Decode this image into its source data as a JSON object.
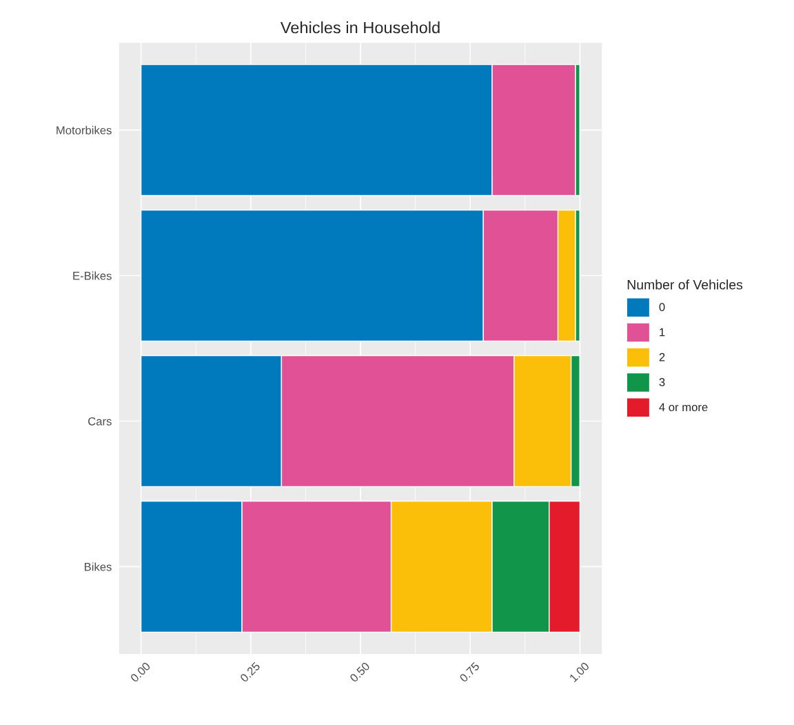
{
  "chart_data": {
    "type": "bar",
    "orientation": "horizontal",
    "stacked": true,
    "title": "Vehicles in Household",
    "legend_title": "Number of Vehicles",
    "legend": "right",
    "categories": [
      "Motorbikes",
      "E-Bikes",
      "Cars",
      "Bikes"
    ],
    "series": [
      {
        "name": "0",
        "color": "#0079bd",
        "values": [
          0.8,
          0.78,
          0.32,
          0.23
        ]
      },
      {
        "name": "1",
        "color": "#e05196",
        "values": [
          0.19,
          0.17,
          0.53,
          0.34
        ]
      },
      {
        "name": "2",
        "color": "#fbbf0a",
        "values": [
          0,
          0.04,
          0.13,
          0.23
        ]
      },
      {
        "name": "3",
        "color": "#10954a",
        "values": [
          0.01,
          0.01,
          0.02,
          0.13
        ]
      },
      {
        "name": "4 or more",
        "color": "#e31b2b",
        "values": [
          0,
          0,
          0,
          0.07
        ]
      }
    ],
    "xlim": [
      -0.05,
      1.05
    ],
    "xticks": [
      {
        "value": 0,
        "label": "0.00"
      },
      {
        "value": 0.25,
        "label": "0.25"
      },
      {
        "value": 0.5,
        "label": "0.50"
      },
      {
        "value": 0.75,
        "label": "0.75"
      },
      {
        "value": 1,
        "label": "1.00"
      }
    ],
    "grid": true
  }
}
